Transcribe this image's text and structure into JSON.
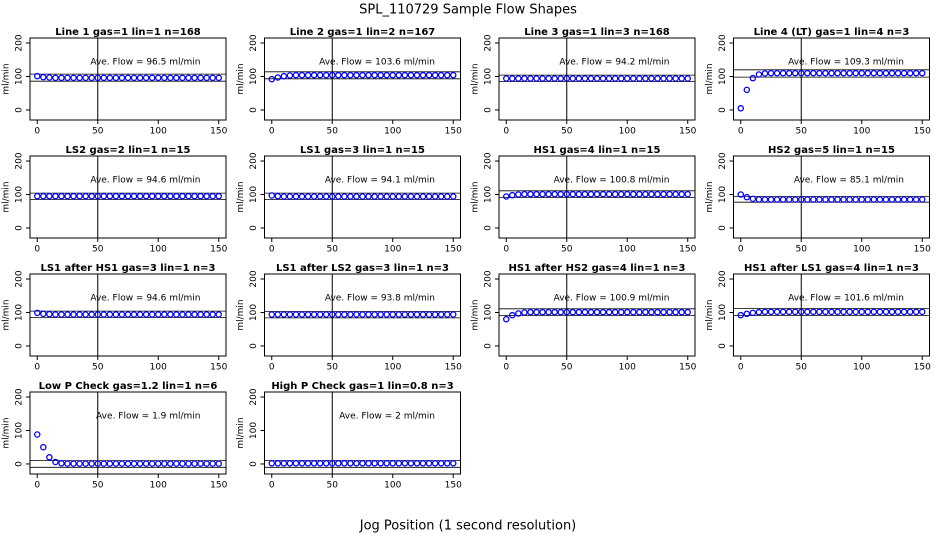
{
  "title": "SPL_110729  Sample Flow Shapes",
  "xlabel": "Jog Position (1 second resolution)",
  "chart_data": [
    {
      "type": "scatter",
      "title": "Line 1 gas=1 lin=1 n=168",
      "annotation": "Ave. Flow = 96.5  ml/min",
      "ylabel": "ml/min",
      "color": "#0000ff",
      "xlim": [
        -6,
        156
      ],
      "ylim": [
        -30,
        215
      ],
      "xticks": [
        0,
        50,
        100,
        150
      ],
      "yticks": [
        0,
        100,
        200
      ],
      "vline": 50,
      "hlines": [
        86,
        107
      ],
      "x": [
        0,
        5,
        10,
        15,
        20,
        25,
        30,
        35,
        40,
        45,
        50,
        55,
        60,
        65,
        70,
        75,
        80,
        85,
        90,
        95,
        100,
        105,
        110,
        115,
        120,
        125,
        130,
        135,
        140,
        145,
        150
      ],
      "values": [
        101,
        98,
        97,
        96,
        96,
        96,
        96,
        96,
        96,
        96,
        96,
        96,
        96,
        96,
        96,
        96,
        96,
        96,
        96,
        96,
        96,
        96,
        96,
        96,
        96,
        96,
        96,
        96,
        96,
        96,
        96
      ]
    },
    {
      "type": "scatter",
      "title": "Line 2 gas=1 lin=2 n=167",
      "annotation": "Ave. Flow = 103.6  ml/min",
      "ylabel": "ml/min",
      "color": "#0000ff",
      "xlim": [
        -6,
        156
      ],
      "ylim": [
        -30,
        215
      ],
      "xticks": [
        0,
        50,
        100,
        150
      ],
      "yticks": [
        0,
        100,
        200
      ],
      "vline": 50,
      "hlines": [
        93,
        114
      ],
      "x": [
        0,
        5,
        10,
        15,
        20,
        25,
        30,
        35,
        40,
        45,
        50,
        55,
        60,
        65,
        70,
        75,
        80,
        85,
        90,
        95,
        100,
        105,
        110,
        115,
        120,
        125,
        130,
        135,
        140,
        145,
        150
      ],
      "values": [
        92,
        97,
        101,
        103,
        104,
        104,
        104,
        104,
        104,
        104,
        104,
        104,
        104,
        104,
        104,
        104,
        104,
        104,
        104,
        104,
        104,
        104,
        104,
        104,
        104,
        104,
        104,
        104,
        104,
        104,
        104
      ]
    },
    {
      "type": "scatter",
      "title": "Line 3 gas=1 lin=3 n=168",
      "annotation": "Ave. Flow = 94.2  ml/min",
      "ylabel": "ml/min",
      "color": "#0000ff",
      "xlim": [
        -6,
        156
      ],
      "ylim": [
        -30,
        215
      ],
      "xticks": [
        0,
        50,
        100,
        150
      ],
      "yticks": [
        0,
        100,
        200
      ],
      "vline": 50,
      "hlines": [
        85,
        104
      ],
      "x": [
        0,
        5,
        10,
        15,
        20,
        25,
        30,
        35,
        40,
        45,
        50,
        55,
        60,
        65,
        70,
        75,
        80,
        85,
        90,
        95,
        100,
        105,
        110,
        115,
        120,
        125,
        130,
        135,
        140,
        145,
        150
      ],
      "values": [
        94,
        94,
        94,
        94,
        94,
        94,
        94,
        94,
        94,
        94,
        94,
        94,
        94,
        94,
        94,
        94,
        94,
        94,
        94,
        94,
        94,
        94,
        94,
        94,
        94,
        94,
        94,
        94,
        94,
        94,
        94
      ]
    },
    {
      "type": "scatter",
      "title": "Line 4 (LT) gas=1 lin=4 n=3",
      "annotation": "Ave. Flow = 109.3  ml/min",
      "ylabel": "ml/min",
      "color": "#0000ff",
      "xlim": [
        -6,
        156
      ],
      "ylim": [
        -30,
        215
      ],
      "xticks": [
        0,
        50,
        100,
        150
      ],
      "yticks": [
        0,
        100,
        200
      ],
      "vline": 50,
      "hlines": [
        98,
        120
      ],
      "x": [
        0,
        5,
        10,
        15,
        20,
        25,
        30,
        35,
        40,
        45,
        50,
        55,
        60,
        65,
        70,
        75,
        80,
        85,
        90,
        95,
        100,
        105,
        110,
        115,
        120,
        125,
        130,
        135,
        140,
        145,
        150
      ],
      "values": [
        5,
        60,
        95,
        106,
        109,
        110,
        110,
        110,
        110,
        110,
        110,
        110,
        110,
        110,
        110,
        110,
        110,
        110,
        110,
        110,
        110,
        110,
        110,
        110,
        110,
        110,
        110,
        110,
        110,
        110,
        110
      ]
    },
    {
      "type": "scatter",
      "title": "LS2 gas=2 lin=1 n=15",
      "annotation": "Ave. Flow = 94.6  ml/min",
      "ylabel": "ml/min",
      "color": "#0000ff",
      "xlim": [
        -6,
        156
      ],
      "ylim": [
        -30,
        215
      ],
      "xticks": [
        0,
        50,
        100,
        150
      ],
      "yticks": [
        0,
        100,
        200
      ],
      "vline": 50,
      "hlines": [
        85,
        104
      ],
      "x": [
        0,
        5,
        10,
        15,
        20,
        25,
        30,
        35,
        40,
        45,
        50,
        55,
        60,
        65,
        70,
        75,
        80,
        85,
        90,
        95,
        100,
        105,
        110,
        115,
        120,
        125,
        130,
        135,
        140,
        145,
        150
      ],
      "values": [
        95,
        95,
        95,
        95,
        95,
        95,
        95,
        95,
        95,
        95,
        95,
        95,
        95,
        95,
        95,
        95,
        95,
        95,
        95,
        95,
        95,
        95,
        95,
        95,
        95,
        95,
        95,
        95,
        95,
        95,
        95
      ]
    },
    {
      "type": "scatter",
      "title": "LS1 gas=3 lin=1 n=15",
      "annotation": "Ave. Flow = 94.1  ml/min",
      "ylabel": "ml/min",
      "color": "#0000ff",
      "xlim": [
        -6,
        156
      ],
      "ylim": [
        -30,
        215
      ],
      "xticks": [
        0,
        50,
        100,
        150
      ],
      "yticks": [
        0,
        100,
        200
      ],
      "vline": 50,
      "hlines": [
        85,
        104
      ],
      "x": [
        0,
        5,
        10,
        15,
        20,
        25,
        30,
        35,
        40,
        45,
        50,
        55,
        60,
        65,
        70,
        75,
        80,
        85,
        90,
        95,
        100,
        105,
        110,
        115,
        120,
        125,
        130,
        135,
        140,
        145,
        150
      ],
      "values": [
        97,
        95,
        94,
        94,
        94,
        94,
        94,
        94,
        94,
        94,
        94,
        94,
        94,
        94,
        94,
        94,
        94,
        94,
        94,
        94,
        94,
        94,
        94,
        94,
        94,
        94,
        94,
        94,
        94,
        94,
        94
      ]
    },
    {
      "type": "scatter",
      "title": "HS1 gas=4 lin=1 n=15",
      "annotation": "Ave. Flow = 100.8  ml/min",
      "ylabel": "ml/min",
      "color": "#0000ff",
      "xlim": [
        -6,
        156
      ],
      "ylim": [
        -30,
        215
      ],
      "xticks": [
        0,
        50,
        100,
        150
      ],
      "yticks": [
        0,
        100,
        200
      ],
      "vline": 50,
      "hlines": [
        91,
        111
      ],
      "x": [
        0,
        5,
        10,
        15,
        20,
        25,
        30,
        35,
        40,
        45,
        50,
        55,
        60,
        65,
        70,
        75,
        80,
        85,
        90,
        95,
        100,
        105,
        110,
        115,
        120,
        125,
        130,
        135,
        140,
        145,
        150
      ],
      "values": [
        94,
        98,
        100,
        101,
        101,
        101,
        101,
        101,
        101,
        101,
        101,
        101,
        101,
        101,
        101,
        101,
        101,
        101,
        101,
        101,
        101,
        101,
        101,
        101,
        101,
        101,
        101,
        101,
        101,
        101,
        101
      ]
    },
    {
      "type": "scatter",
      "title": "HS2 gas=5 lin=1 n=15",
      "annotation": "Ave. Flow = 85.1  ml/min",
      "ylabel": "ml/min",
      "color": "#0000ff",
      "xlim": [
        -6,
        156
      ],
      "ylim": [
        -30,
        215
      ],
      "xticks": [
        0,
        50,
        100,
        150
      ],
      "yticks": [
        0,
        100,
        200
      ],
      "vline": 50,
      "hlines": [
        77,
        94
      ],
      "x": [
        0,
        5,
        10,
        15,
        20,
        25,
        30,
        35,
        40,
        45,
        50,
        55,
        60,
        65,
        70,
        75,
        80,
        85,
        90,
        95,
        100,
        105,
        110,
        115,
        120,
        125,
        130,
        135,
        140,
        145,
        150
      ],
      "values": [
        100,
        92,
        87,
        85,
        85,
        85,
        85,
        85,
        85,
        85,
        85,
        85,
        85,
        85,
        85,
        85,
        85,
        85,
        85,
        85,
        85,
        85,
        85,
        85,
        85,
        85,
        85,
        85,
        85,
        85,
        85
      ]
    },
    {
      "type": "scatter",
      "title": "LS1 after HS1 gas=3 lin=1 n=3",
      "annotation": "Ave. Flow = 94.6  ml/min",
      "ylabel": "ml/min",
      "color": "#0000ff",
      "xlim": [
        -6,
        156
      ],
      "ylim": [
        -30,
        215
      ],
      "xticks": [
        0,
        50,
        100,
        150
      ],
      "yticks": [
        0,
        100,
        200
      ],
      "vline": 50,
      "hlines": [
        85,
        104
      ],
      "x": [
        0,
        5,
        10,
        15,
        20,
        25,
        30,
        35,
        40,
        45,
        50,
        55,
        60,
        65,
        70,
        75,
        80,
        85,
        90,
        95,
        100,
        105,
        110,
        115,
        120,
        125,
        130,
        135,
        140,
        145,
        150
      ],
      "values": [
        99,
        96,
        95,
        94,
        94,
        94,
        94,
        94,
        94,
        94,
        94,
        94,
        94,
        94,
        94,
        94,
        94,
        94,
        94,
        94,
        94,
        94,
        94,
        94,
        94,
        94,
        94,
        94,
        94,
        94,
        94
      ]
    },
    {
      "type": "scatter",
      "title": "LS1 after LS2 gas=3 lin=1 n=3",
      "annotation": "Ave. Flow = 93.8  ml/min",
      "ylabel": "ml/min",
      "color": "#0000ff",
      "xlim": [
        -6,
        156
      ],
      "ylim": [
        -30,
        215
      ],
      "xticks": [
        0,
        50,
        100,
        150
      ],
      "yticks": [
        0,
        100,
        200
      ],
      "vline": 50,
      "hlines": [
        84,
        103
      ],
      "x": [
        0,
        5,
        10,
        15,
        20,
        25,
        30,
        35,
        40,
        45,
        50,
        55,
        60,
        65,
        70,
        75,
        80,
        85,
        90,
        95,
        100,
        105,
        110,
        115,
        120,
        125,
        130,
        135,
        140,
        145,
        150
      ],
      "values": [
        94,
        94,
        94,
        94,
        94,
        94,
        94,
        94,
        94,
        94,
        94,
        94,
        94,
        94,
        94,
        94,
        94,
        94,
        94,
        94,
        94,
        94,
        94,
        94,
        94,
        94,
        94,
        94,
        94,
        94,
        94
      ]
    },
    {
      "type": "scatter",
      "title": "HS1 after HS2 gas=4 lin=1 n=3",
      "annotation": "Ave. Flow = 100.9  ml/min",
      "ylabel": "ml/min",
      "color": "#0000ff",
      "xlim": [
        -6,
        156
      ],
      "ylim": [
        -30,
        215
      ],
      "xticks": [
        0,
        50,
        100,
        150
      ],
      "yticks": [
        0,
        100,
        200
      ],
      "vline": 50,
      "hlines": [
        91,
        111
      ],
      "x": [
        0,
        5,
        10,
        15,
        20,
        25,
        30,
        35,
        40,
        45,
        50,
        55,
        60,
        65,
        70,
        75,
        80,
        85,
        90,
        95,
        100,
        105,
        110,
        115,
        120,
        125,
        130,
        135,
        140,
        145,
        150
      ],
      "values": [
        80,
        92,
        97,
        100,
        101,
        101,
        101,
        101,
        101,
        101,
        101,
        101,
        101,
        101,
        101,
        101,
        101,
        101,
        101,
        101,
        101,
        101,
        101,
        101,
        101,
        101,
        101,
        101,
        101,
        101,
        101
      ]
    },
    {
      "type": "scatter",
      "title": "HS1 after LS1 gas=4 lin=1 n=3",
      "annotation": "Ave. Flow = 101.6  ml/min",
      "ylabel": "ml/min",
      "color": "#0000ff",
      "xlim": [
        -6,
        156
      ],
      "ylim": [
        -30,
        215
      ],
      "xticks": [
        0,
        50,
        100,
        150
      ],
      "yticks": [
        0,
        100,
        200
      ],
      "vline": 50,
      "hlines": [
        91,
        112
      ],
      "x": [
        0,
        5,
        10,
        15,
        20,
        25,
        30,
        35,
        40,
        45,
        50,
        55,
        60,
        65,
        70,
        75,
        80,
        85,
        90,
        95,
        100,
        105,
        110,
        115,
        120,
        125,
        130,
        135,
        140,
        145,
        150
      ],
      "values": [
        92,
        96,
        99,
        101,
        102,
        102,
        102,
        102,
        102,
        102,
        102,
        102,
        102,
        102,
        102,
        102,
        102,
        102,
        102,
        102,
        102,
        102,
        102,
        102,
        102,
        102,
        102,
        102,
        102,
        102,
        102
      ]
    },
    {
      "type": "scatter",
      "title": "Low P Check gas=1.2 lin=1 n=6",
      "annotation": "Ave. Flow = 1.9  ml/min",
      "ylabel": "ml/min",
      "color": "#0000ff",
      "xlim": [
        -6,
        156
      ],
      "ylim": [
        -30,
        215
      ],
      "xticks": [
        0,
        50,
        100,
        150
      ],
      "yticks": [
        0,
        100,
        200
      ],
      "vline": 50,
      "hlines": [
        -10,
        10
      ],
      "x": [
        0,
        5,
        10,
        15,
        20,
        25,
        30,
        35,
        40,
        45,
        50,
        55,
        60,
        65,
        70,
        75,
        80,
        85,
        90,
        95,
        100,
        105,
        110,
        115,
        120,
        125,
        130,
        135,
        140,
        145,
        150
      ],
      "values": [
        88,
        50,
        20,
        6,
        2,
        1,
        1,
        1,
        1,
        1,
        1,
        1,
        1,
        1,
        1,
        1,
        1,
        1,
        1,
        1,
        1,
        1,
        1,
        1,
        1,
        1,
        1,
        1,
        1,
        1,
        1
      ]
    },
    {
      "type": "scatter",
      "title": "High P Check gas=1 lin=0.8 n=3",
      "annotation": "Ave. Flow = 2  ml/min",
      "ylabel": "ml/min",
      "color": "#0000ff",
      "xlim": [
        -6,
        156
      ],
      "ylim": [
        -30,
        215
      ],
      "xticks": [
        0,
        50,
        100,
        150
      ],
      "yticks": [
        0,
        100,
        200
      ],
      "vline": 50,
      "hlines": [
        -10,
        10
      ],
      "x": [
        0,
        5,
        10,
        15,
        20,
        25,
        30,
        35,
        40,
        45,
        50,
        55,
        60,
        65,
        70,
        75,
        80,
        85,
        90,
        95,
        100,
        105,
        110,
        115,
        120,
        125,
        130,
        135,
        140,
        145,
        150
      ],
      "values": [
        2,
        2,
        2,
        2,
        2,
        2,
        2,
        2,
        2,
        2,
        2,
        2,
        2,
        2,
        2,
        2,
        2,
        2,
        2,
        2,
        2,
        2,
        2,
        2,
        2,
        2,
        2,
        2,
        2,
        2,
        2
      ]
    }
  ]
}
